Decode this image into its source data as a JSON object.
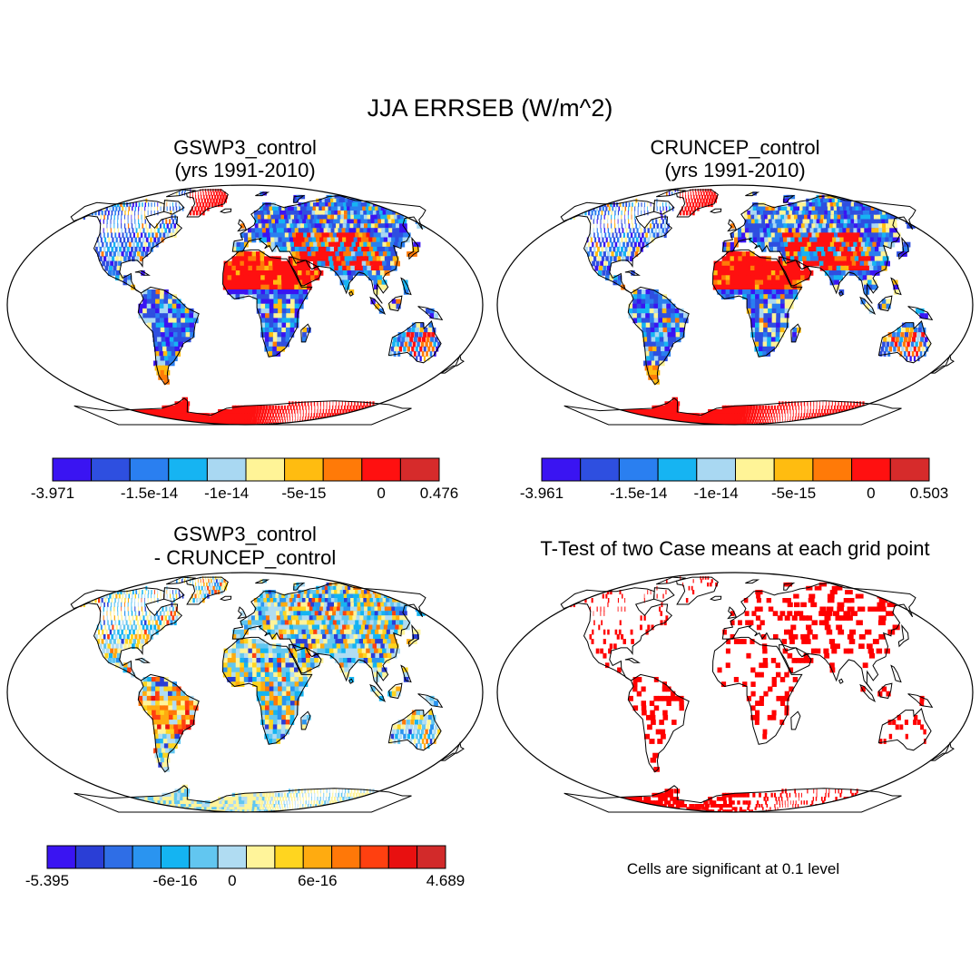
{
  "title": "JJA ERRSEB (W/m^2)",
  "chart_data": [
    {
      "type": "heatmap",
      "title_lines": [
        "GSWP3_control",
        "(yrs 1991-2010)"
      ],
      "colorbar": {
        "colors": [
          "#3a14f2",
          "#2e4fe0",
          "#2a7ff0",
          "#16b4f2",
          "#a9d8f2",
          "#fff497",
          "#ffbc10",
          "#ff7a08",
          "#ff1010",
          "#d62b2b"
        ],
        "tick_labels": [
          "-3.971",
          "-1.5e-14",
          "-1e-14",
          "-5e-15",
          "0",
          "0.476"
        ]
      }
    },
    {
      "type": "heatmap",
      "title_lines": [
        "CRUNCEP_control",
        "(yrs 1991-2010)"
      ],
      "colorbar": {
        "colors": [
          "#3a14f2",
          "#2e4fe0",
          "#2a7ff0",
          "#16b4f2",
          "#a9d8f2",
          "#fff497",
          "#ffbc10",
          "#ff7a08",
          "#ff1010",
          "#d62b2b"
        ],
        "tick_labels": [
          "-3.961",
          "-1.5e-14",
          "-1e-14",
          "-5e-15",
          "0",
          "0.503"
        ]
      }
    },
    {
      "type": "heatmap",
      "title_lines": [
        "GSWP3_control",
        "- CRUNCEP_control"
      ],
      "colorbar": {
        "colors": [
          "#3a14f2",
          "#2a3ed6",
          "#2f6ee6",
          "#2a94f0",
          "#14b4f2",
          "#62c6f0",
          "#b0dcf2",
          "#fff49a",
          "#ffd51f",
          "#ffab10",
          "#ff7808",
          "#ff4010",
          "#e81010",
          "#d22a2a"
        ],
        "tick_labels": [
          "-5.395",
          "-6e-16",
          "0",
          "6e-16",
          "4.689"
        ]
      }
    },
    {
      "type": "heatmap",
      "title_lines": [
        "T-Test of two Case means at each grid point"
      ],
      "note": "Cells are significant at 0.1 level",
      "mark_color": "#ff0000"
    }
  ]
}
